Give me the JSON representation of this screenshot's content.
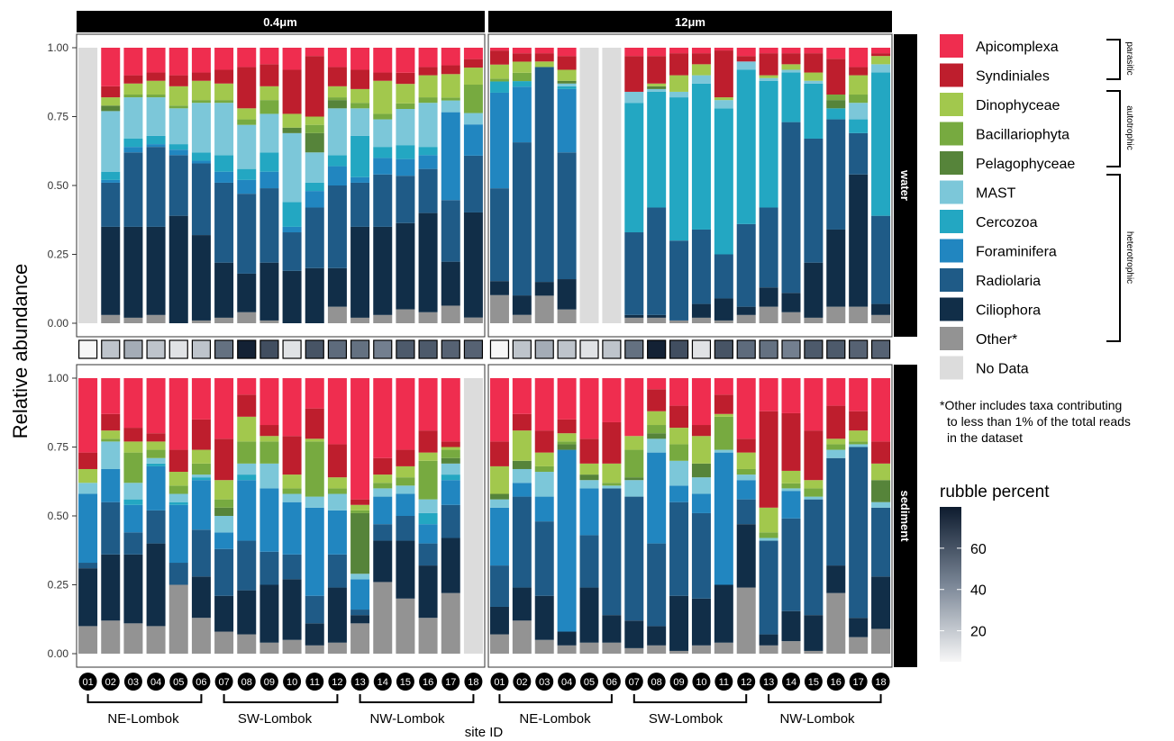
{
  "chart_data": {
    "type": "bar",
    "stacked": true,
    "ylabel": "Relative abundance",
    "xlabel": "site ID",
    "ylim": [
      0,
      1
    ],
    "yticks": [
      "0.00",
      "0.25",
      "0.50",
      "0.75",
      "1.00"
    ],
    "col_facets": [
      "0.4μm",
      "12μm"
    ],
    "row_facets": [
      "water",
      "sediment"
    ],
    "sites": [
      "01",
      "02",
      "03",
      "04",
      "05",
      "06",
      "07",
      "08",
      "09",
      "10",
      "11",
      "12",
      "13",
      "14",
      "15",
      "16",
      "17",
      "18"
    ],
    "regions": [
      {
        "name": "NE-Lombok",
        "from": "01",
        "to": "06"
      },
      {
        "name": "SW-Lombok",
        "from": "07",
        "to": "12"
      },
      {
        "name": "NW-Lombok",
        "from": "13",
        "to": "18"
      }
    ],
    "taxa": [
      {
        "name": "Apicomplexa",
        "color": "#EF2D4F"
      },
      {
        "name": "Syndiniales",
        "color": "#BE1E2D"
      },
      {
        "name": "Dinophyceae",
        "color": "#A2C84D"
      },
      {
        "name": "Bacillariophyta",
        "color": "#77AA40"
      },
      {
        "name": "Pelagophyceae",
        "color": "#56843A"
      },
      {
        "name": "MAST",
        "color": "#7CC7D9"
      },
      {
        "name": "Cercozoa",
        "color": "#23A7C2"
      },
      {
        "name": "Foraminifera",
        "color": "#2186C0"
      },
      {
        "name": "Radiolaria",
        "color": "#1F5B87"
      },
      {
        "name": "Ciliophora",
        "color": "#112E48"
      },
      {
        "name": "Other*",
        "color": "#939393"
      }
    ],
    "no_data": {
      "name": "No Data",
      "color": "#DCDCDC"
    },
    "stack_order_bottom_to_top": [
      "Other*",
      "Ciliophora",
      "Radiolaria",
      "Foraminifera",
      "Cercozoa",
      "MAST",
      "Pelagophyceae",
      "Bacillariophyta",
      "Dinophyceae",
      "Syndiniales",
      "Apicomplexa"
    ],
    "groups": [
      {
        "taxon": "parasitic",
        "members": [
          "Apicomplexa",
          "Syndiniales"
        ]
      },
      {
        "taxon": "autotrophic",
        "members": [
          "Dinophyceae",
          "Bacillariophyta",
          "Pelagophyceae"
        ]
      },
      {
        "taxon": "heterotrophic",
        "members": [
          "MAST",
          "Cercozoa",
          "Foraminifera",
          "Radiolaria",
          "Ciliophora",
          "Other*"
        ]
      }
    ],
    "footnote": [
      "*Other includes taxa contributing",
      "to less than 1% of the total reads",
      "in the dataset"
    ],
    "rubble": {
      "title": "rubble percent",
      "ticks": [
        20,
        40,
        60
      ],
      "range": [
        5,
        80
      ],
      "low_color": "#F7F7F7",
      "high_color": "#0D1B2E",
      "values_04um": [
        5,
        22,
        30,
        22,
        12,
        22,
        50,
        78,
        62,
        12,
        60,
        52,
        50,
        45,
        58,
        58,
        55,
        55
      ],
      "values_12um": [
        5,
        22,
        30,
        22,
        12,
        22,
        50,
        78,
        62,
        12,
        60,
        52,
        50,
        45,
        58,
        58,
        55,
        55
      ]
    },
    "panels": {
      "water_04um": [
        null,
        [
          0.14,
          0.04,
          0.03,
          0.0,
          0.02,
          0.22,
          0.03,
          0.01,
          0.16,
          0.32,
          0.03
        ],
        [
          0.1,
          0.03,
          0.04,
          0.01,
          0.0,
          0.15,
          0.03,
          0.02,
          0.27,
          0.33,
          0.02
        ],
        [
          0.09,
          0.03,
          0.05,
          0.01,
          0.0,
          0.14,
          0.03,
          0.01,
          0.29,
          0.32,
          0.03
        ],
        [
          0.1,
          0.04,
          0.07,
          0.01,
          0.0,
          0.13,
          0.02,
          0.02,
          0.22,
          0.39,
          0.0
        ],
        [
          0.09,
          0.03,
          0.07,
          0.01,
          0.0,
          0.18,
          0.03,
          0.01,
          0.26,
          0.31,
          0.01
        ],
        [
          0.08,
          0.05,
          0.06,
          0.01,
          0.0,
          0.19,
          0.06,
          0.04,
          0.29,
          0.2,
          0.02
        ],
        [
          0.07,
          0.15,
          0.04,
          0.02,
          0.0,
          0.16,
          0.04,
          0.05,
          0.29,
          0.14,
          0.04
        ],
        [
          0.06,
          0.08,
          0.05,
          0.05,
          0.0,
          0.14,
          0.07,
          0.06,
          0.27,
          0.21,
          0.01
        ],
        [
          0.08,
          0.16,
          0.05,
          0.0,
          0.02,
          0.25,
          0.09,
          0.02,
          0.14,
          0.19,
          0.0
        ],
        [
          0.03,
          0.22,
          0.03,
          0.03,
          0.07,
          0.11,
          0.03,
          0.06,
          0.22,
          0.2,
          0.0
        ],
        [
          0.07,
          0.07,
          0.04,
          0.01,
          0.03,
          0.17,
          0.04,
          0.07,
          0.3,
          0.14,
          0.06
        ],
        [
          0.08,
          0.07,
          0.05,
          0.02,
          0.0,
          0.1,
          0.15,
          0.02,
          0.16,
          0.33,
          0.02
        ],
        [
          0.09,
          0.03,
          0.12,
          0.02,
          0.0,
          0.1,
          0.04,
          0.06,
          0.19,
          0.32,
          0.03
        ],
        [
          0.09,
          0.04,
          0.07,
          0.02,
          0.0,
          0.13,
          0.05,
          0.06,
          0.17,
          0.31,
          0.05
        ],
        [
          0.07,
          0.03,
          0.08,
          0.02,
          0.0,
          0.16,
          0.03,
          0.05,
          0.16,
          0.36,
          0.04
        ],
        [
          0.06,
          0.03,
          0.08,
          0.01,
          0.0,
          0.04,
          0.0,
          0.3,
          0.21,
          0.15,
          0.06
        ],
        [
          0.04,
          0.03,
          0.06,
          0.1,
          0.0,
          0.04,
          0.0,
          0.11,
          0.2,
          0.37,
          0.02
        ]
      ],
      "water_12um": [
        [
          0.01,
          0.05,
          0.05,
          0.01,
          0.0,
          0.0,
          0.04,
          0.34,
          0.33,
          0.05,
          0.1
        ],
        [
          0.02,
          0.03,
          0.04,
          0.03,
          0.0,
          0.0,
          0.02,
          0.2,
          0.55,
          0.07,
          0.03
        ],
        [
          0.02,
          0.03,
          0.02,
          0.0,
          0.0,
          0.0,
          0.0,
          0.0,
          0.78,
          0.05,
          0.1
        ],
        [
          0.03,
          0.05,
          0.04,
          0.0,
          0.01,
          0.01,
          0.01,
          0.23,
          0.46,
          0.11,
          0.05
        ],
        null,
        null,
        [
          0.03,
          0.13,
          0.0,
          0.0,
          0.0,
          0.04,
          0.47,
          0.0,
          0.3,
          0.01,
          0.02
        ],
        [
          0.03,
          0.1,
          0.01,
          0.0,
          0.01,
          0.01,
          0.42,
          0.0,
          0.39,
          0.01,
          0.02
        ],
        [
          0.02,
          0.08,
          0.06,
          0.0,
          0.0,
          0.02,
          0.52,
          0.0,
          0.29,
          0.0,
          0.01
        ],
        [
          0.02,
          0.04,
          0.04,
          0.0,
          0.0,
          0.03,
          0.53,
          0.0,
          0.27,
          0.05,
          0.02
        ],
        [
          0.01,
          0.17,
          0.01,
          0.0,
          0.0,
          0.03,
          0.53,
          0.0,
          0.16,
          0.08,
          0.01
        ],
        [
          0.03,
          0.02,
          0.0,
          0.0,
          0.0,
          0.03,
          0.56,
          0.0,
          0.3,
          0.03,
          0.03
        ],
        [
          0.02,
          0.08,
          0.01,
          0.0,
          0.0,
          0.01,
          0.46,
          0.0,
          0.29,
          0.07,
          0.06
        ],
        [
          0.02,
          0.04,
          0.02,
          0.0,
          0.0,
          0.01,
          0.18,
          0.0,
          0.62,
          0.07,
          0.04
        ],
        [
          0.02,
          0.07,
          0.03,
          0.0,
          0.0,
          0.01,
          0.2,
          0.0,
          0.45,
          0.2,
          0.02
        ],
        [
          0.04,
          0.13,
          0.0,
          0.02,
          0.03,
          0.0,
          0.04,
          0.0,
          0.4,
          0.28,
          0.06
        ],
        [
          0.07,
          0.03,
          0.07,
          0.03,
          0.0,
          0.06,
          0.05,
          0.0,
          0.15,
          0.48,
          0.06
        ],
        [
          0.02,
          0.01,
          0.03,
          0.0,
          0.0,
          0.03,
          0.52,
          0.0,
          0.32,
          0.04,
          0.03
        ]
      ],
      "sediment_04um": [
        [
          0.27,
          0.06,
          0.05,
          0.0,
          0.0,
          0.04,
          0.0,
          0.25,
          0.02,
          0.21,
          0.1
        ],
        [
          0.13,
          0.06,
          0.03,
          0.01,
          0.0,
          0.1,
          0.0,
          0.12,
          0.19,
          0.24,
          0.12
        ],
        [
          0.18,
          0.05,
          0.04,
          0.11,
          0.0,
          0.06,
          0.02,
          0.1,
          0.08,
          0.25,
          0.11
        ],
        [
          0.2,
          0.03,
          0.03,
          0.03,
          0.0,
          0.02,
          0.01,
          0.16,
          0.12,
          0.3,
          0.1
        ],
        [
          0.26,
          0.08,
          0.05,
          0.03,
          0.0,
          0.03,
          0.01,
          0.21,
          0.08,
          0.0,
          0.25
        ],
        [
          0.15,
          0.11,
          0.05,
          0.04,
          0.0,
          0.01,
          0.01,
          0.18,
          0.17,
          0.15,
          0.13
        ],
        [
          0.22,
          0.15,
          0.07,
          0.03,
          0.03,
          0.06,
          0.0,
          0.06,
          0.17,
          0.13,
          0.08
        ],
        [
          0.06,
          0.08,
          0.09,
          0.08,
          0.0,
          0.04,
          0.02,
          0.22,
          0.18,
          0.16,
          0.07
        ],
        [
          0.17,
          0.04,
          0.02,
          0.08,
          0.0,
          0.09,
          0.0,
          0.23,
          0.12,
          0.21,
          0.04
        ],
        [
          0.21,
          0.14,
          0.05,
          0.02,
          0.0,
          0.03,
          0.0,
          0.19,
          0.09,
          0.22,
          0.05
        ],
        [
          0.11,
          0.11,
          0.01,
          0.2,
          0.0,
          0.04,
          0.0,
          0.32,
          0.1,
          0.08,
          0.03
        ],
        [
          0.24,
          0.12,
          0.04,
          0.02,
          0.0,
          0.06,
          0.0,
          0.16,
          0.12,
          0.2,
          0.04
        ],
        [
          0.44,
          0.02,
          0.02,
          0.01,
          0.22,
          0.02,
          0.0,
          0.11,
          0.02,
          0.03,
          0.11
        ],
        [
          0.29,
          0.06,
          0.03,
          0.02,
          0.0,
          0.03,
          0.0,
          0.1,
          0.06,
          0.15,
          0.26
        ],
        [
          0.26,
          0.06,
          0.04,
          0.03,
          0.0,
          0.03,
          0.0,
          0.08,
          0.09,
          0.21,
          0.2
        ],
        [
          0.19,
          0.08,
          0.03,
          0.14,
          0.0,
          0.05,
          0.04,
          0.07,
          0.08,
          0.19,
          0.13
        ],
        [
          0.23,
          0.02,
          0.01,
          0.03,
          0.02,
          0.04,
          0.02,
          0.09,
          0.12,
          0.2,
          0.22
        ],
        null
      ],
      "sediment_12um": [
        [
          0.23,
          0.09,
          0.1,
          0.0,
          0.02,
          0.03,
          0.0,
          0.21,
          0.15,
          0.1,
          0.07
        ],
        [
          0.13,
          0.06,
          0.11,
          0.0,
          0.03,
          0.05,
          0.0,
          0.05,
          0.33,
          0.12,
          0.12
        ],
        [
          0.19,
          0.08,
          0.05,
          0.02,
          0.0,
          0.09,
          0.0,
          0.09,
          0.27,
          0.16,
          0.05
        ],
        [
          0.15,
          0.05,
          0.03,
          0.01,
          0.02,
          0.0,
          0.0,
          0.66,
          0.0,
          0.05,
          0.03
        ],
        [
          0.22,
          0.09,
          0.04,
          0.0,
          0.02,
          0.03,
          0.0,
          0.17,
          0.19,
          0.2,
          0.04
        ],
        [
          0.16,
          0.15,
          0.07,
          0.01,
          0.0,
          0.01,
          0.0,
          0.0,
          0.46,
          0.1,
          0.04
        ],
        [
          0.21,
          0.0,
          0.05,
          0.1,
          0.01,
          0.06,
          0.0,
          0.0,
          0.45,
          0.1,
          0.02
        ],
        [
          0.04,
          0.08,
          0.05,
          0.03,
          0.02,
          0.05,
          0.0,
          0.33,
          0.3,
          0.07,
          0.03
        ],
        [
          0.1,
          0.08,
          0.06,
          0.06,
          0.0,
          0.09,
          0.0,
          0.06,
          0.34,
          0.2,
          0.01
        ],
        [
          0.17,
          0.04,
          0.1,
          0.0,
          0.05,
          0.06,
          0.0,
          0.07,
          0.31,
          0.17,
          0.03
        ],
        [
          0.06,
          0.07,
          0.01,
          0.12,
          0.0,
          0.01,
          0.0,
          0.48,
          0.0,
          0.21,
          0.04
        ],
        [
          0.22,
          0.05,
          0.06,
          0.02,
          0.0,
          0.02,
          0.0,
          0.07,
          0.09,
          0.23,
          0.24
        ],
        [
          0.12,
          0.35,
          0.09,
          0.02,
          0.0,
          0.01,
          0.0,
          0.0,
          0.34,
          0.04,
          0.03
        ],
        [
          0.14,
          0.23,
          0.05,
          0.02,
          0.0,
          0.01,
          0.0,
          0.11,
          0.37,
          0.12,
          0.05
        ],
        [
          0.19,
          0.18,
          0.03,
          0.03,
          0.0,
          0.01,
          0.0,
          0.0,
          0.42,
          0.13,
          0.01
        ],
        [
          0.1,
          0.12,
          0.02,
          0.02,
          0.0,
          0.03,
          0.0,
          0.0,
          0.39,
          0.1,
          0.22
        ],
        [
          0.12,
          0.07,
          0.04,
          0.01,
          0.0,
          0.01,
          0.0,
          0.0,
          0.62,
          0.07,
          0.06
        ],
        [
          0.23,
          0.08,
          0.06,
          0.0,
          0.08,
          0.02,
          0.0,
          0.0,
          0.25,
          0.19,
          0.09
        ]
      ]
    }
  }
}
